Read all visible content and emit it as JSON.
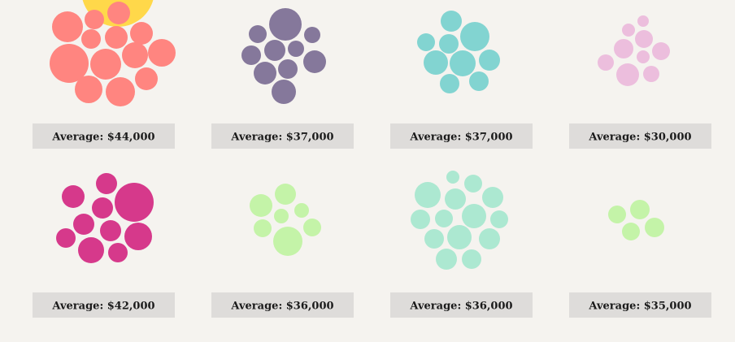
{
  "chart_data": {
    "type": "bubble-cluster",
    "label_prefix": "Average: ",
    "clusters": [
      {
        "label": "Average: $44,000",
        "average": 44000,
        "color": "#ff8580"
      },
      {
        "label": "Average: $37,000",
        "average": 37000,
        "color": "#85789b"
      },
      {
        "label": "Average: $37,000",
        "average": 37000,
        "color": "#82d4d1"
      },
      {
        "label": "Average: $30,000",
        "average": 30000,
        "color": "#ecbedd"
      },
      {
        "label": "Average: $42,000",
        "average": 42000,
        "color": "#d6398b"
      },
      {
        "label": "Average: $36,000",
        "average": 36000,
        "color": "#c4f3a8"
      },
      {
        "label": "Average: $36,000",
        "average": 36000,
        "color": "#ace8d1"
      },
      {
        "label": "Average: $35,000",
        "average": 35000,
        "color": "#c4f3a8"
      }
    ],
    "extra_color": "#ffd84a"
  }
}
